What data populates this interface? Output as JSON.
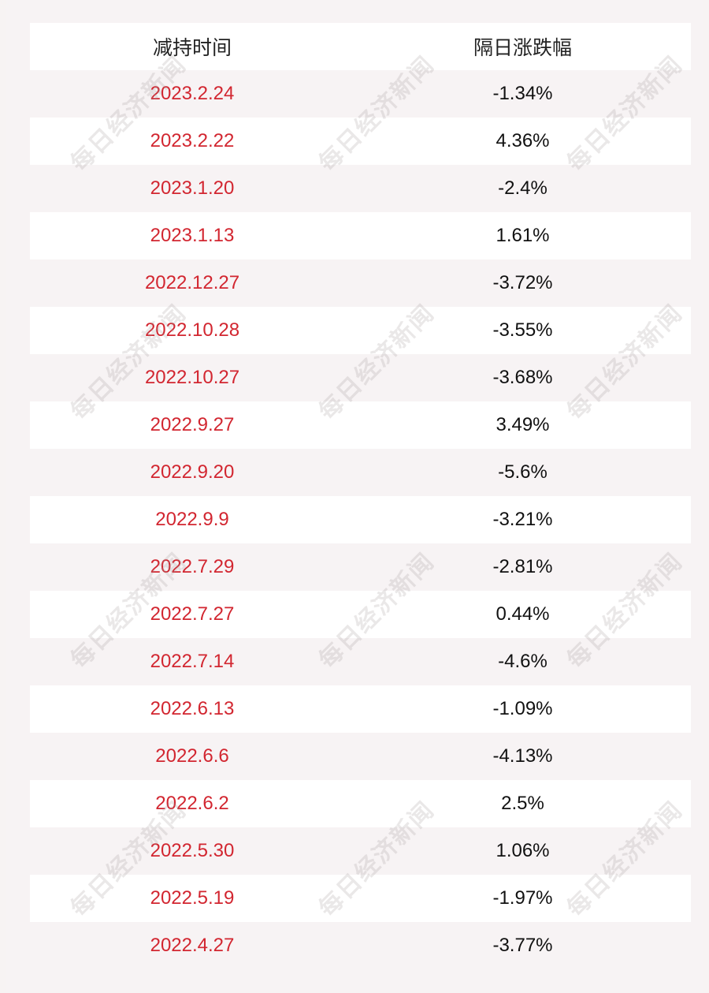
{
  "table": {
    "headers": [
      "减持时间",
      "隔日涨跌幅"
    ],
    "rows": [
      {
        "date": "2023.2.24",
        "change": "-1.34%"
      },
      {
        "date": "2023.2.22",
        "change": "4.36%"
      },
      {
        "date": "2023.1.20",
        "change": "-2.4%"
      },
      {
        "date": "2023.1.13",
        "change": "1.61%"
      },
      {
        "date": "2022.12.27",
        "change": "-3.72%"
      },
      {
        "date": "2022.10.28",
        "change": "-3.55%"
      },
      {
        "date": "2022.10.27",
        "change": "-3.68%"
      },
      {
        "date": "2022.9.27",
        "change": "3.49%"
      },
      {
        "date": "2022.9.20",
        "change": "-5.6%"
      },
      {
        "date": "2022.9.9",
        "change": "-3.21%"
      },
      {
        "date": "2022.7.29",
        "change": "-2.81%"
      },
      {
        "date": "2022.7.27",
        "change": "0.44%"
      },
      {
        "date": "2022.7.14",
        "change": "-4.6%"
      },
      {
        "date": "2022.6.13",
        "change": "-1.09%"
      },
      {
        "date": "2022.6.6",
        "change": "-4.13%"
      },
      {
        "date": "2022.6.2",
        "change": "2.5%"
      },
      {
        "date": "2022.5.30",
        "change": "1.06%"
      },
      {
        "date": "2022.5.19",
        "change": "-1.97%"
      },
      {
        "date": "2022.4.27",
        "change": "-3.77%"
      }
    ]
  },
  "watermark": "每日经济新闻",
  "colors": {
    "date_text": "#d22630",
    "value_text": "#111111",
    "background": "#f7f3f4"
  }
}
